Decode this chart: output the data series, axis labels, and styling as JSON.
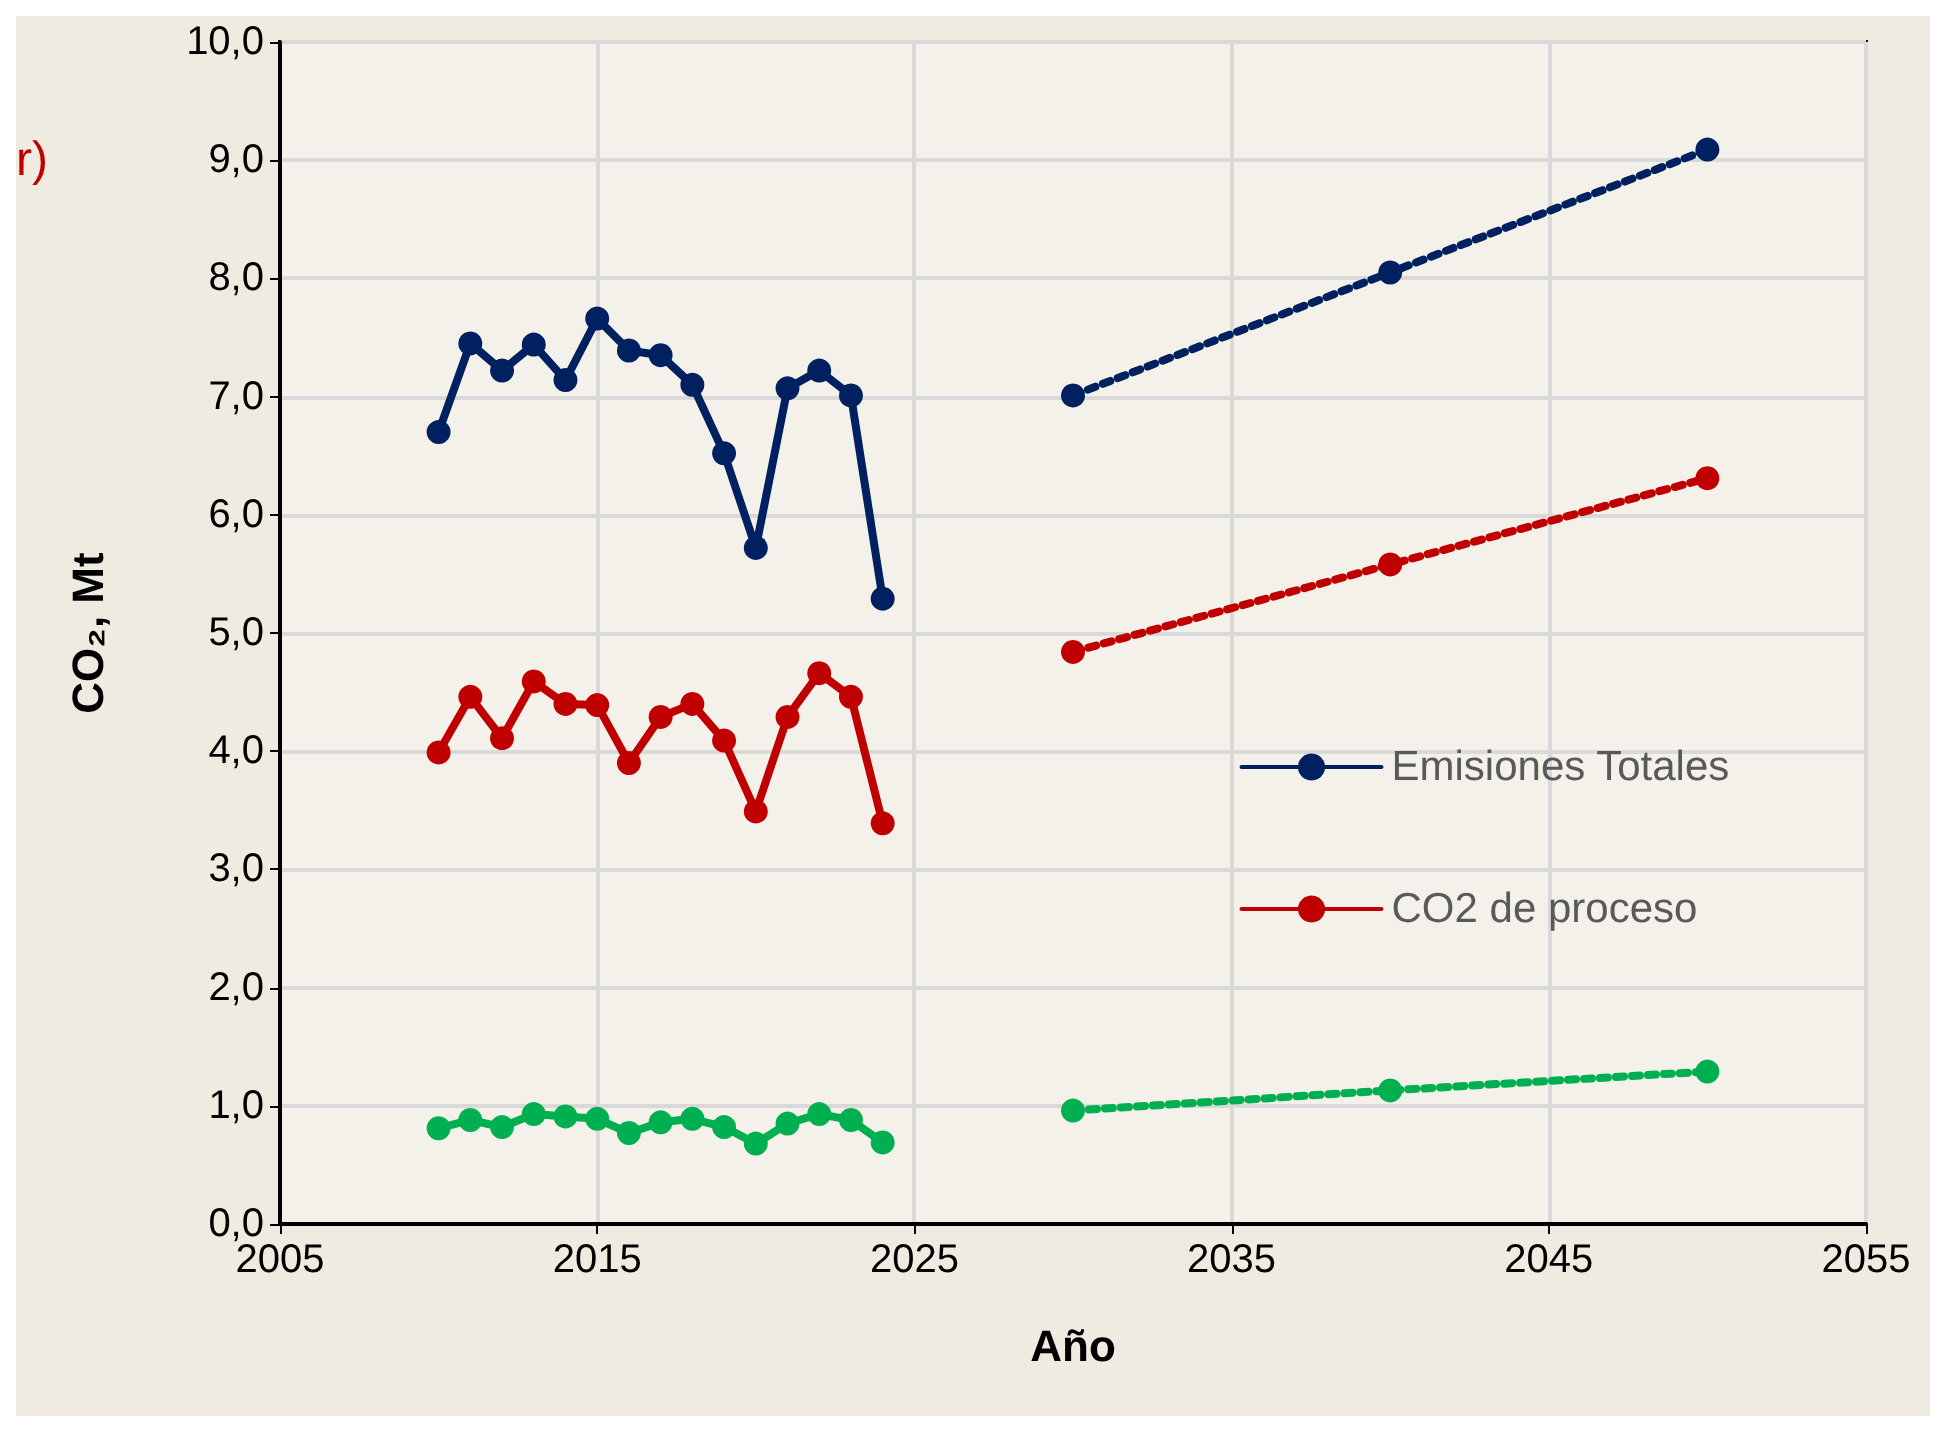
{
  "chart_data": {
    "type": "line",
    "xlabel": "Año",
    "ylabel": "CO₂, Mt",
    "annotations": [
      "r)"
    ],
    "xlim": [
      2005,
      2055
    ],
    "xticks": [
      2005,
      2015,
      2025,
      2035,
      2045,
      2055
    ],
    "ylim": [
      0,
      10
    ],
    "yticks": [
      {
        "value": 0,
        "label": "0,0"
      },
      {
        "value": 1,
        "label": "1,0"
      },
      {
        "value": 2,
        "label": "2,0"
      },
      {
        "value": 3,
        "label": "3,0"
      },
      {
        "value": 4,
        "label": "4,0"
      },
      {
        "value": 5,
        "label": "5,0"
      },
      {
        "value": 6,
        "label": "6,0"
      },
      {
        "value": 7,
        "label": "7,0"
      },
      {
        "value": 8,
        "label": "8,0"
      },
      {
        "value": 9,
        "label": "9,0"
      },
      {
        "value": 10,
        "label": "10,0"
      }
    ],
    "grid": true,
    "legend": "right",
    "marker": "circle",
    "series": [
      {
        "name": "Emisiones Totales",
        "color": "#002060",
        "line_style": "solid",
        "x": [
          2010,
          2011,
          2012,
          2013,
          2014,
          2015,
          2016,
          2017,
          2018,
          2019,
          2020,
          2021,
          2022,
          2023,
          2024
        ],
        "values": [
          6.7,
          7.45,
          7.22,
          7.44,
          7.14,
          7.66,
          7.39,
          7.35,
          7.1,
          6.52,
          5.72,
          7.07,
          7.22,
          7.01,
          5.29
        ]
      },
      {
        "name": "CO2 de proceso",
        "color": "#c00000",
        "line_style": "solid",
        "x": [
          2010,
          2011,
          2012,
          2013,
          2014,
          2015,
          2016,
          2017,
          2018,
          2019,
          2020,
          2021,
          2022,
          2023,
          2024
        ],
        "values": [
          3.99,
          4.46,
          4.11,
          4.59,
          4.4,
          4.39,
          3.9,
          4.29,
          4.4,
          4.09,
          3.49,
          4.29,
          4.66,
          4.46,
          3.39
        ]
      },
      {
        "color": "#00b050",
        "line_style": "solid",
        "x": [
          2010,
          2011,
          2012,
          2013,
          2014,
          2015,
          2016,
          2017,
          2018,
          2019,
          2020,
          2021,
          2022,
          2023,
          2024
        ],
        "values": [
          0.81,
          0.88,
          0.82,
          0.93,
          0.91,
          0.89,
          0.77,
          0.86,
          0.89,
          0.82,
          0.68,
          0.85,
          0.93,
          0.88,
          0.69
        ]
      },
      {
        "color": "#002060",
        "line_style": "dotted",
        "x": [
          2030,
          2040,
          2050
        ],
        "values": [
          7.01,
          8.05,
          9.09
        ]
      },
      {
        "color": "#c00000",
        "line_style": "dotted",
        "x": [
          2030,
          2040,
          2050
        ],
        "values": [
          4.84,
          5.58,
          6.31
        ]
      },
      {
        "color": "#00b050",
        "line_style": "dotted",
        "x": [
          2030,
          2040,
          2050
        ],
        "values": [
          0.96,
          1.13,
          1.29
        ]
      }
    ]
  }
}
